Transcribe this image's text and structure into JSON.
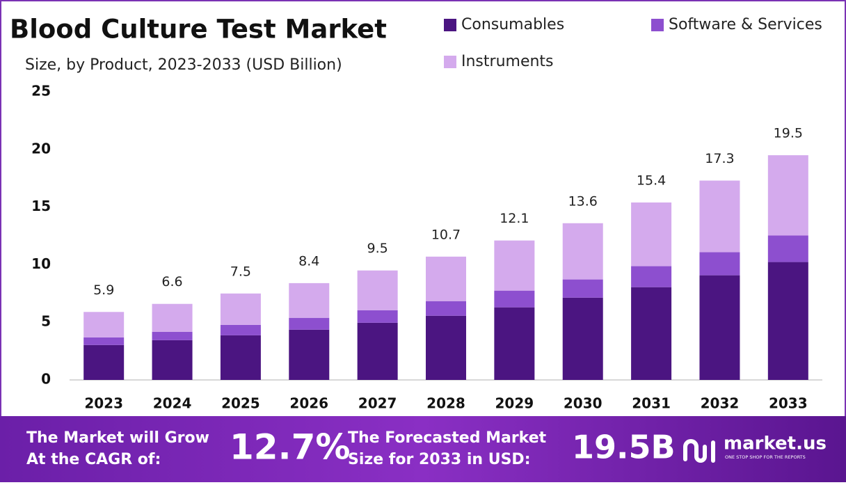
{
  "chart_data": {
    "type": "bar",
    "stacked": true,
    "title": "Blood Culture Test Market",
    "subtitle": "Size, by Product, 2023-2033 (USD Billion)",
    "categories": [
      "2023",
      "2024",
      "2025",
      "2026",
      "2027",
      "2028",
      "2029",
      "2030",
      "2031",
      "2032",
      "2033"
    ],
    "series": [
      {
        "name": "Consumables",
        "color": "#4b1581",
        "values": [
          3.03,
          3.45,
          3.87,
          4.36,
          4.96,
          5.57,
          6.3,
          7.14,
          8.05,
          9.08,
          10.23
        ]
      },
      {
        "name": "Software & Services",
        "color": "#8d4fcf",
        "values": [
          0.66,
          0.73,
          0.91,
          1.03,
          1.09,
          1.27,
          1.45,
          1.58,
          1.82,
          2.0,
          2.3
        ]
      },
      {
        "name": "Instruments",
        "color": "#d4aaed",
        "values": [
          2.21,
          2.42,
          2.72,
          3.01,
          3.45,
          3.86,
          4.35,
          4.88,
          5.53,
          6.22,
          6.97
        ]
      }
    ],
    "total_labels": [
      5.9,
      6.6,
      7.5,
      8.4,
      9.5,
      10.7,
      12.1,
      13.6,
      15.4,
      17.3,
      19.5
    ],
    "ylim": [
      0,
      25
    ],
    "yticks": [
      0,
      5,
      10,
      15,
      20,
      25
    ],
    "grid": false,
    "legend": "top-right"
  },
  "footer": {
    "cagr_text": [
      "The Market will Grow",
      "At the CAGR of:"
    ],
    "cagr": "12.7%",
    "forecast_text": [
      "The Forecasted Market",
      "Size for 2033 in USD:"
    ],
    "forecast": "19.5B",
    "brand": "market.us",
    "tagline": "ONE STOP SHOP FOR THE REPORTS"
  }
}
